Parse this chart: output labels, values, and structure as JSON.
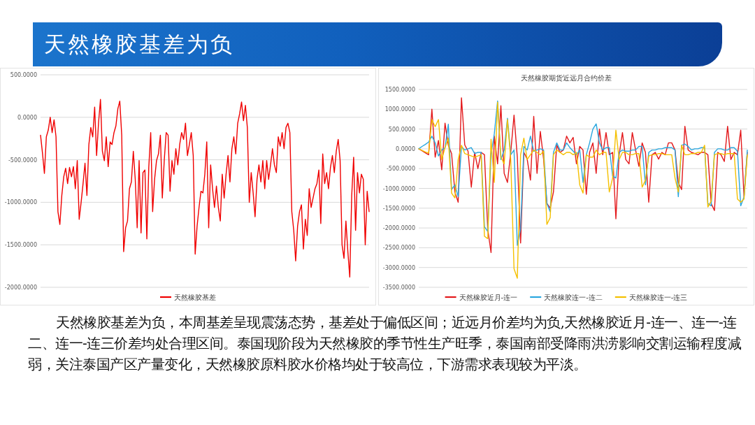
{
  "chart_data": [
    {
      "type": "other",
      "title": "天然橡胶基差为负",
      "annotations": [
        "天然橡胶基差为负，本周基差呈现震荡态势，基差处于偏低区间；近远月价差均为负,天然橡胶近月-连一、连一-连二、连一-连三价差均处合理区间。泰国现阶段为天然橡胶的季节性生产旺季，泰国南部受降雨洪涝影响交割运输程度减弱，关注泰国产区产量变化，天然橡胶原料胶水价格均处于较高位，下游需求表现较为平淡。"
      ]
    },
    {
      "type": "line",
      "categories": [
        null,
        null,
        null,
        null,
        null,
        null,
        null,
        null,
        null,
        null,
        null,
        null,
        null,
        null,
        null,
        null,
        null,
        null,
        null,
        null,
        null,
        null,
        null,
        null,
        null,
        null,
        null,
        null,
        null,
        null,
        null,
        null,
        null,
        null,
        null,
        null,
        null,
        null,
        null,
        null,
        null,
        null,
        null,
        null,
        null,
        null,
        null,
        null,
        null,
        null,
        null,
        null,
        null,
        null,
        null,
        null,
        null,
        null,
        null,
        null,
        null,
        null,
        null,
        null,
        null,
        null,
        null,
        null,
        null,
        null,
        null,
        null,
        null,
        null,
        null,
        null,
        null,
        null,
        null,
        null,
        null,
        null,
        null,
        null,
        null,
        null,
        null,
        null,
        null,
        null,
        null,
        null,
        null,
        null,
        null,
        null,
        null,
        null,
        null,
        null,
        null,
        null,
        null,
        null,
        null,
        null,
        null,
        null,
        null,
        null,
        null,
        null,
        null,
        null,
        null,
        null,
        null,
        null,
        null,
        null,
        null,
        null,
        null,
        null,
        null,
        null,
        null,
        null,
        null,
        null,
        null,
        null,
        null,
        null,
        null,
        null,
        null,
        null,
        null,
        null,
        null,
        null,
        null,
        null,
        null,
        null,
        null,
        null,
        null,
        null,
        null,
        null,
        null,
        null,
        null,
        null,
        null,
        null,
        null,
        null,
        null,
        null,
        null,
        null,
        null,
        null,
        null,
        null,
        null,
        null,
        null
      ],
      "series": [
        {
          "name": "天然橡胶基差",
          "color": "#f00000",
          "values": [
            -210,
            -420,
            -660,
            -230,
            -150,
            0,
            -180,
            -30,
            -230,
            -1110,
            -1260,
            -920,
            -700,
            -600,
            -780,
            -590,
            -700,
            -580,
            -840,
            -510,
            -1200,
            -1000,
            -780,
            -540,
            -920,
            -320,
            -120,
            -230,
            120,
            -450,
            -70,
            210,
            -400,
            -510,
            -230,
            -580,
            -290,
            -320,
            -180,
            -100,
            100,
            190,
            -210,
            -1580,
            -1300,
            -1220,
            -840,
            -760,
            -400,
            -730,
            -1300,
            -510,
            -1360,
            -650,
            -620,
            -1430,
            -590,
            -180,
            -1110,
            -730,
            -510,
            -430,
            -210,
            -950,
            -510,
            -180,
            -210,
            -870,
            -510,
            -670,
            -370,
            -560,
            -320,
            -180,
            -260,
            -70,
            -450,
            -320,
            -180,
            -450,
            -1610,
            -1280,
            -1060,
            -870,
            -890,
            -670,
            -290,
            -1300,
            -560,
            -840,
            -1060,
            -810,
            -1060,
            -1220,
            -670,
            -950,
            -670,
            -450,
            -760,
            -370,
            -230,
            -430,
            -70,
            40,
            180,
            -40,
            140,
            -120,
            -1000,
            -650,
            -890,
            -1170,
            -730,
            -560,
            -760,
            -510,
            -840,
            -510,
            -730,
            -560,
            -370,
            -560,
            -650,
            -230,
            -340,
            -180,
            -370,
            -120,
            -70,
            -180,
            -1110,
            -1330,
            -1690,
            -1280,
            -1110,
            -1030,
            -1550,
            -1200,
            -1390,
            -840,
            -1060,
            -950,
            -840,
            -780,
            -620,
            -1250,
            -430,
            -780,
            -650,
            -840,
            -590,
            -450,
            -650,
            -400,
            -260,
            -510,
            -1500,
            -1660,
            -1220,
            -1580,
            -1880,
            -920,
            -470,
            -1330,
            -650,
            -890,
            -670,
            -730,
            -1500,
            -870,
            -1110
          ]
        }
      ],
      "ylim": [
        -2000,
        500
      ],
      "yticks": [
        {
          "value": 500,
          "label": "500.0000"
        },
        {
          "value": 0,
          "label": "0.0000"
        },
        {
          "value": -500,
          "label": "-500.0000"
        },
        {
          "value": -1000,
          "label": "-1000.0000"
        },
        {
          "value": -1500,
          "label": "-1500.0000"
        },
        {
          "value": -2000,
          "label": "-2000.0000"
        }
      ],
      "grid": "y",
      "legend": "bottom"
    },
    {
      "type": "line",
      "title": "天然橡胶期货近远月合约价差",
      "categories": [
        null,
        null,
        null,
        null,
        null,
        null,
        null,
        null,
        null,
        null,
        null,
        null,
        null,
        null,
        null,
        null,
        null,
        null,
        null,
        null,
        null,
        null,
        null,
        null,
        null,
        null,
        null,
        null,
        null,
        null,
        null,
        null,
        null,
        null,
        null,
        null,
        null,
        null,
        null,
        null,
        null,
        null,
        null,
        null,
        null,
        null,
        null,
        null,
        null,
        null,
        null,
        null,
        null,
        null,
        null,
        null,
        null,
        null,
        null,
        null,
        null,
        null,
        null,
        null,
        null,
        null,
        null,
        null,
        null,
        null,
        null,
        null,
        null,
        null,
        null,
        null,
        null,
        null,
        null,
        null,
        null,
        null,
        null,
        null,
        null,
        null,
        null,
        null,
        null,
        null,
        null,
        null,
        null,
        null,
        null,
        null,
        null,
        null,
        null,
        null,
        null
      ],
      "series": [
        {
          "name": "天然橡胶近月-连一",
          "color": "#e3191c",
          "values": [
            0,
            -50,
            -100,
            -150,
            1000,
            -210,
            210,
            -530,
            650,
            90,
            -120,
            -1090,
            -1350,
            1290,
            100,
            -60,
            -970,
            -90,
            -500,
            -90,
            -150,
            -2030,
            -2620,
            320,
            -380,
            1090,
            -620,
            -850,
            -90,
            850,
            -210,
            -2380,
            -90,
            -260,
            -790,
            820,
            -620,
            440,
            -260,
            -1380,
            -1500,
            -1090,
            90,
            -90,
            -30,
            320,
            150,
            290,
            -380,
            60,
            -30,
            -1150,
            -90,
            150,
            -620,
            500,
            -150,
            410,
            -150,
            -90,
            -1770,
            -150,
            410,
            -270,
            -380,
            410,
            -30,
            -440,
            150,
            -90,
            -1350,
            -150,
            -90,
            -260,
            -90,
            -150,
            150,
            150,
            -30,
            -850,
            -1030,
            570,
            -30,
            -90,
            -120,
            -150,
            -90,
            -90,
            -150,
            -1380,
            -1560,
            -90,
            -150,
            -320,
            570,
            -270,
            -90,
            -150,
            470,
            -1210,
            -90
          ]
        },
        {
          "name": "天然橡胶连一-连二",
          "color": "#2aa7df",
          "values": [
            0,
            60,
            110,
            170,
            320,
            150,
            -180,
            -30,
            30,
            620,
            -1030,
            -910,
            -1210,
            60,
            -30,
            0,
            30,
            -120,
            -90,
            -90,
            -1970,
            -2090,
            -150,
            380,
            1210,
            -270,
            -30,
            770,
            -150,
            -30,
            -2440,
            -2030,
            60,
            -30,
            320,
            -60,
            -30,
            0,
            -30,
            -1380,
            -1590,
            -90,
            150,
            -30,
            -30,
            150,
            30,
            -60,
            -150,
            -30,
            -850,
            -150,
            150,
            500,
            630,
            150,
            -30,
            30,
            30,
            -680,
            -740,
            -90,
            -30,
            -60,
            -60,
            -30,
            -30,
            60,
            60,
            -910,
            -90,
            -30,
            -30,
            0,
            0,
            30,
            30,
            30,
            -30,
            -1210,
            90,
            120,
            60,
            -30,
            0,
            0,
            30,
            30,
            -1380,
            -1440,
            -90,
            0,
            0,
            -30,
            -30,
            30,
            30,
            -60,
            -1440,
            -1210,
            -30
          ]
        },
        {
          "name": "天然橡胶连一-连三",
          "color": "#f5c000",
          "values": [
            0,
            -40,
            -80,
            -110,
            740,
            560,
            740,
            -270,
            30,
            270,
            -1120,
            -1240,
            -270,
            90,
            -120,
            -150,
            -180,
            -210,
            -180,
            -150,
            -2210,
            -2270,
            240,
            -850,
            1180,
            -210,
            -380,
            740,
            -270,
            -3030,
            -3270,
            -150,
            270,
            -270,
            -150,
            -30,
            -90,
            -150,
            -60,
            -1910,
            -1740,
            -150,
            -30,
            -90,
            -150,
            -90,
            -90,
            -150,
            -90,
            -910,
            -1120,
            -150,
            -210,
            -210,
            -30,
            -150,
            -90,
            -90,
            -1090,
            -740,
            470,
            -270,
            -90,
            -90,
            -150,
            -150,
            -120,
            -120,
            -970,
            -790,
            -180,
            -150,
            -150,
            -120,
            -120,
            -150,
            -150,
            -150,
            -740,
            -1090,
            90,
            -150,
            -150,
            -120,
            -120,
            -90,
            -90,
            90,
            -1470,
            -1320,
            -150,
            -120,
            -120,
            -150,
            -120,
            -120,
            -120,
            -1270,
            -1350,
            -1270,
            -150
          ]
        }
      ],
      "ylim": [
        -3500,
        1500
      ],
      "yticks": [
        {
          "value": 1500,
          "label": "1500.0000"
        },
        {
          "value": 1000,
          "label": "1000.0000"
        },
        {
          "value": 500,
          "label": "500.0000"
        },
        {
          "value": 0,
          "label": "0.0000"
        },
        {
          "value": -500,
          "label": "-500.0000"
        },
        {
          "value": -1000,
          "label": "-1000.0000"
        },
        {
          "value": -1500,
          "label": "-1500.0000"
        },
        {
          "value": -2000,
          "label": "-2000.0000"
        },
        {
          "value": -2500,
          "label": "-2500.0000"
        },
        {
          "value": -3000,
          "label": "-3000.0000"
        },
        {
          "value": -3500,
          "label": "-3500.0000"
        }
      ],
      "grid": "y",
      "legend": "bottom"
    }
  ]
}
